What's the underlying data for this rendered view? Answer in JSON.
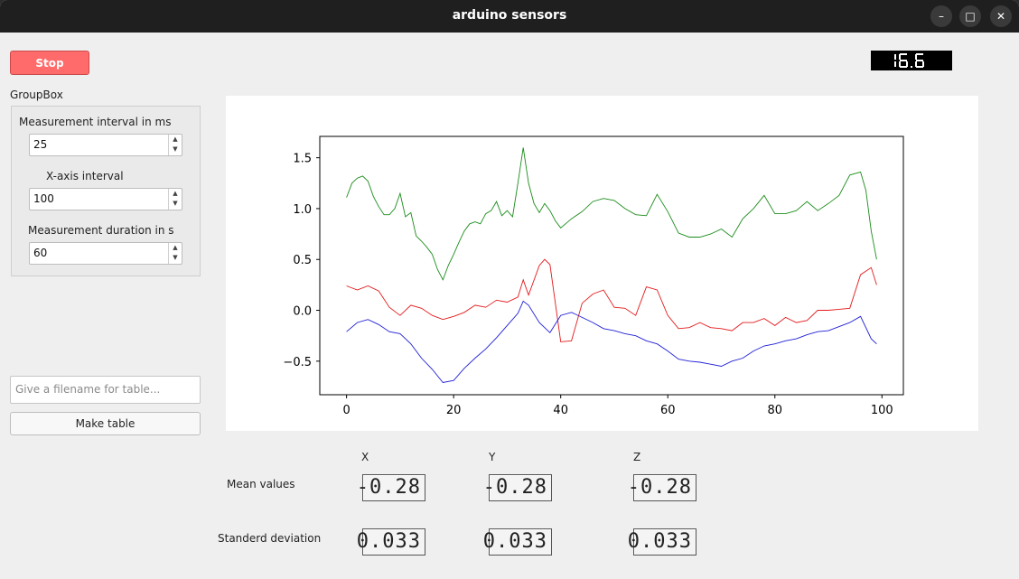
{
  "window": {
    "title": "arduino sensors",
    "controls": {
      "minimize": "–",
      "maximize": "□",
      "close": "✕"
    }
  },
  "controls": {
    "stop_label": "Stop",
    "groupbox_title": "GroupBox",
    "interval_label": "Measurement interval in ms",
    "interval_value": "25",
    "xaxis_label": "X-axis interval",
    "xaxis_value": "100",
    "duration_label": "Measurement duration in s",
    "duration_value": "60",
    "filename_placeholder": "Give a filename for table...",
    "make_table_label": "Make table"
  },
  "top_display": {
    "value": "16.6"
  },
  "stats": {
    "headers": {
      "x": "X",
      "y": "Y",
      "z": "Z"
    },
    "mean_label": "Mean values",
    "std_label": "Standerd deviation",
    "mean": {
      "x": "-0.28",
      "y": "-0.28",
      "z": "-0.28"
    },
    "std": {
      "x": "0.033",
      "y": "0.033",
      "z": "0.033"
    }
  },
  "chart_data": {
    "type": "line",
    "title": "",
    "xlabel": "",
    "ylabel": "",
    "xlim": [
      -5,
      104
    ],
    "ylim": [
      -0.83,
      1.71
    ],
    "xticks": [
      0,
      20,
      40,
      60,
      80,
      100
    ],
    "yticks": [
      -0.5,
      0.0,
      0.5,
      1.0,
      1.5
    ],
    "grid": false,
    "series": [
      {
        "color": "#1a8c1a",
        "x": [
          0,
          1,
          2,
          3,
          4,
          5,
          6,
          7,
          8,
          9,
          10,
          11,
          12,
          13,
          14,
          15,
          16,
          17,
          18,
          19,
          20,
          21,
          22,
          23,
          24,
          25,
          26,
          27,
          28,
          29,
          30,
          31,
          32,
          33,
          34,
          35,
          36,
          37,
          38,
          39,
          40,
          42,
          44,
          46,
          48,
          50,
          52,
          54,
          56,
          58,
          60,
          62,
          64,
          66,
          68,
          70,
          72,
          74,
          76,
          78,
          80,
          82,
          84,
          86,
          88,
          90,
          92,
          94,
          96,
          97,
          98,
          99
        ],
        "values": [
          1.11,
          1.25,
          1.3,
          1.32,
          1.27,
          1.12,
          1.02,
          0.94,
          0.94,
          1.0,
          1.15,
          0.92,
          0.96,
          0.73,
          0.68,
          0.62,
          0.55,
          0.4,
          0.3,
          0.44,
          0.55,
          0.67,
          0.78,
          0.85,
          0.87,
          0.85,
          0.95,
          0.98,
          1.07,
          0.93,
          0.98,
          0.92,
          1.25,
          1.6,
          1.25,
          1.05,
          0.96,
          1.05,
          0.98,
          0.88,
          0.81,
          0.9,
          0.97,
          1.07,
          1.1,
          1.08,
          1.0,
          0.94,
          0.93,
          1.14,
          0.97,
          0.76,
          0.72,
          0.72,
          0.75,
          0.8,
          0.72,
          0.9,
          1.0,
          1.13,
          0.95,
          0.95,
          0.98,
          1.07,
          0.98,
          1.05,
          1.13,
          1.33,
          1.36,
          1.18,
          0.78,
          0.5
        ]
      },
      {
        "color": "#e31a1c",
        "x": [
          0,
          2,
          4,
          6,
          8,
          10,
          12,
          14,
          16,
          18,
          20,
          22,
          24,
          26,
          28,
          30,
          32,
          33,
          34,
          36,
          37,
          38,
          40,
          42,
          44,
          46,
          48,
          50,
          52,
          54,
          56,
          58,
          60,
          62,
          64,
          66,
          68,
          70,
          72,
          74,
          76,
          78,
          80,
          82,
          84,
          86,
          88,
          90,
          92,
          94,
          96,
          98,
          99
        ],
        "values": [
          0.24,
          0.2,
          0.24,
          0.19,
          0.03,
          -0.05,
          0.05,
          0.02,
          -0.05,
          -0.09,
          -0.06,
          -0.02,
          0.05,
          0.03,
          0.1,
          0.08,
          0.13,
          0.3,
          0.15,
          0.44,
          0.5,
          0.45,
          -0.31,
          -0.3,
          0.07,
          0.16,
          0.2,
          0.03,
          0.02,
          -0.05,
          0.23,
          0.2,
          -0.05,
          -0.18,
          -0.17,
          -0.12,
          -0.17,
          -0.18,
          -0.2,
          -0.12,
          -0.12,
          -0.08,
          -0.15,
          -0.07,
          -0.12,
          -0.1,
          0.0,
          0.0,
          0.01,
          0.02,
          0.35,
          0.42,
          0.25
        ]
      },
      {
        "color": "#1f1fd6",
        "x": [
          0,
          2,
          4,
          6,
          8,
          10,
          12,
          14,
          16,
          18,
          20,
          22,
          24,
          26,
          28,
          30,
          32,
          33,
          34,
          36,
          38,
          40,
          42,
          44,
          46,
          48,
          50,
          52,
          54,
          56,
          58,
          60,
          62,
          64,
          66,
          68,
          70,
          72,
          74,
          76,
          78,
          80,
          82,
          84,
          86,
          88,
          90,
          92,
          94,
          96,
          98,
          99
        ],
        "values": [
          -0.21,
          -0.12,
          -0.09,
          -0.14,
          -0.21,
          -0.23,
          -0.33,
          -0.47,
          -0.58,
          -0.71,
          -0.69,
          -0.57,
          -0.47,
          -0.38,
          -0.27,
          -0.15,
          -0.03,
          0.09,
          0.05,
          -0.12,
          -0.22,
          -0.05,
          -0.02,
          -0.07,
          -0.12,
          -0.18,
          -0.2,
          -0.23,
          -0.25,
          -0.3,
          -0.33,
          -0.4,
          -0.48,
          -0.5,
          -0.51,
          -0.53,
          -0.55,
          -0.5,
          -0.47,
          -0.4,
          -0.35,
          -0.33,
          -0.3,
          -0.28,
          -0.24,
          -0.21,
          -0.2,
          -0.16,
          -0.12,
          -0.06,
          -0.28,
          -0.33
        ]
      }
    ]
  }
}
